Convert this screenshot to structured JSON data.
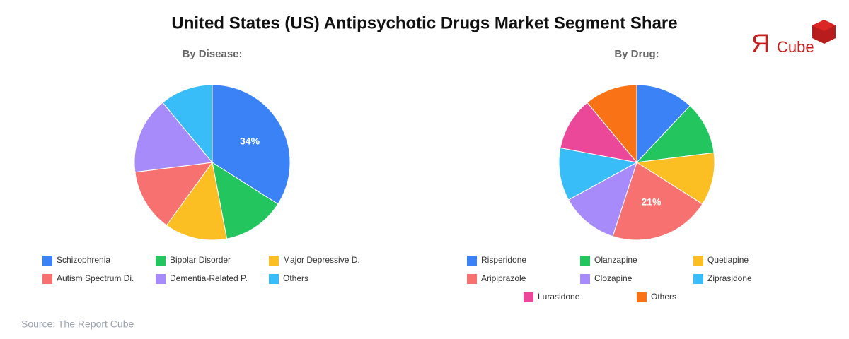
{
  "title": "United States (US) Antipsychotic Drugs Market Segment Share",
  "logo": {
    "mark": "Я",
    "text": "Cube"
  },
  "source": "Source: The Report Cube",
  "chart_data": [
    {
      "type": "pie",
      "title": "By Disease:",
      "categories": [
        "Schizophrenia",
        "Bipolar Disorder",
        "Major Depressive D.",
        "Autism Spectrum Di.",
        "Dementia-Related P.",
        "Others"
      ],
      "values": [
        34,
        13,
        13,
        13,
        16,
        11
      ],
      "value_labels": [
        "34%",
        null,
        null,
        null,
        null,
        null
      ],
      "colors": [
        "#3b82f6",
        "#22c55e",
        "#fbbf24",
        "#f87171",
        "#a78bfa",
        "#38bdf8"
      ]
    },
    {
      "type": "pie",
      "title": "By Drug:",
      "categories": [
        "Risperidone",
        "Olanzapine",
        "Quetiapine",
        "Aripiprazole",
        "Clozapine",
        "Ziprasidone",
        "Lurasidone",
        "Others"
      ],
      "values": [
        12,
        11,
        11,
        21,
        12,
        11,
        11,
        11
      ],
      "value_labels": [
        null,
        null,
        null,
        "21%",
        null,
        null,
        null,
        null
      ],
      "colors": [
        "#3b82f6",
        "#22c55e",
        "#fbbf24",
        "#f87171",
        "#a78bfa",
        "#38bdf8",
        "#ec4899",
        "#f97316"
      ]
    }
  ]
}
